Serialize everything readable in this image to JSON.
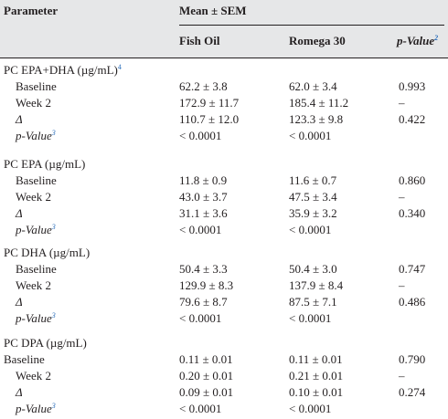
{
  "header": {
    "parameter": "Parameter",
    "group": "Mean ± SEM",
    "col_fish": "Fish Oil",
    "col_romega": "Romega 30",
    "col_p": "p-Value",
    "col_p_sup": "2"
  },
  "sections": [
    {
      "title": "PC EPA+DHA (µg/mL)",
      "title_sup": "4",
      "rows": [
        {
          "label": "Baseline",
          "label_sup": "",
          "fish": "62.2 ± 3.8",
          "romega": "62.0 ± 3.4",
          "p": "0.993"
        },
        {
          "label": "Week 2",
          "label_sup": "",
          "fish": "172.9 ± 11.7",
          "romega": "185.4 ± 11.2",
          "p": "–"
        },
        {
          "label": "Δ",
          "label_sup": "",
          "fish": "110.7 ± 12.0",
          "romega": "123.3 ± 9.8",
          "p": "0.422"
        },
        {
          "label": "p-Value",
          "label_sup": "3",
          "fish": "< 0.0001",
          "romega": "< 0.0001",
          "p": ""
        }
      ]
    },
    {
      "title": "PC EPA (µg/mL)",
      "title_sup": "",
      "rows": [
        {
          "label": "Baseline",
          "label_sup": "",
          "fish": "11.8 ± 0.9",
          "romega": "11.6 ± 0.7",
          "p": "0.860"
        },
        {
          "label": "Week 2",
          "label_sup": "",
          "fish": "43.0 ± 3.7",
          "romega": "47.5 ± 3.4",
          "p": "–"
        },
        {
          "label": "Δ",
          "label_sup": "",
          "fish": "31.1 ± 3.6",
          "romega": "35.9 ± 3.2",
          "p": "0.340"
        },
        {
          "label": "p-Value",
          "label_sup": "3",
          "fish": "< 0.0001",
          "romega": "< 0.0001",
          "p": ""
        }
      ]
    },
    {
      "title": "PC DHA (µg/mL)",
      "title_sup": "",
      "rows": [
        {
          "label": "Baseline",
          "label_sup": "",
          "fish": "50.4 ± 3.3",
          "romega": "50.4  ± 3.0",
          "p": "0.747"
        },
        {
          "label": "Week 2",
          "label_sup": "",
          "fish": "129.9 ± 8.3",
          "romega": "137.9 ± 8.4",
          "p": "–"
        },
        {
          "label": "Δ",
          "label_sup": "",
          "fish": "79.6 ± 8.7",
          "romega": "87.5 ± 7.1",
          "p": "0.486"
        },
        {
          "label": "p-Value",
          "label_sup": "3",
          "fish": "< 0.0001",
          "romega": "< 0.0001",
          "p": ""
        }
      ]
    },
    {
      "title": "PC DPA (µg/mL)",
      "title_sup": "",
      "rows": [
        {
          "label": "Baseline",
          "label_sup": "",
          "fish": "0.11 ± 0.01",
          "romega": "0.11 ± 0.01",
          "p": "0.790"
        },
        {
          "label": "Week 2",
          "label_sup": "",
          "fish": "0.20 ± 0.01",
          "romega": "0.21 ±  0.01",
          "p": "–"
        },
        {
          "label": "Δ",
          "label_sup": "",
          "fish": "0.09 ± 0.01",
          "romega": "0.10 ± 0.01",
          "p": "0.274"
        },
        {
          "label": "p-Value",
          "label_sup": "3",
          "fish": "< 0.0001",
          "romega": "< 0.0001",
          "p": ""
        }
      ]
    }
  ]
}
